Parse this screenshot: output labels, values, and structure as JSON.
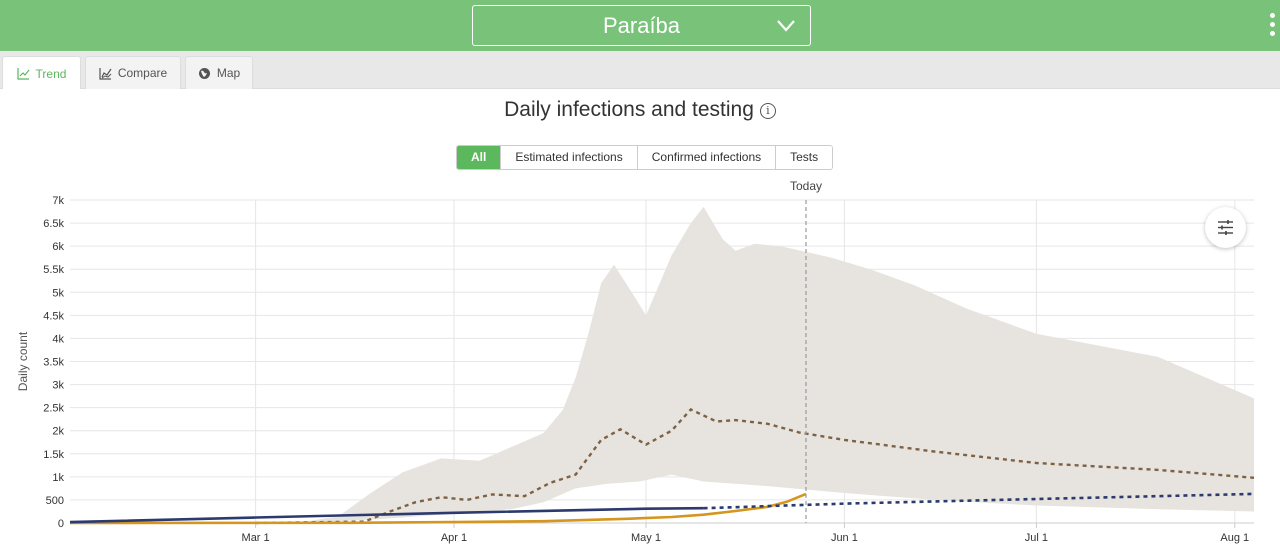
{
  "header": {
    "region": "Paraíba"
  },
  "tabs": [
    {
      "label": "Trend",
      "icon": "line-chart-icon",
      "active": true
    },
    {
      "label": "Compare",
      "icon": "area-chart-icon",
      "active": false
    },
    {
      "label": "Map",
      "icon": "globe-icon",
      "active": false
    }
  ],
  "filters": [
    {
      "label": "All",
      "active": true
    },
    {
      "label": "Estimated infections",
      "active": false
    },
    {
      "label": "Confirmed infections",
      "active": false
    },
    {
      "label": "Tests",
      "active": false
    }
  ],
  "colors": {
    "brand": "#79c27a",
    "accent": "#5cb85c",
    "band": "#e7e4e0",
    "estimated": "#7d6246",
    "confirmed": "#d4961e",
    "tests": "#2c3a6e"
  },
  "chart_data": {
    "type": "line",
    "title": "Daily infections and testing",
    "ylabel": "Daily count",
    "ylim": [
      0,
      7000
    ],
    "x_ticks": [
      "Mar 1",
      "Apr 1",
      "May 1",
      "Jun 1",
      "Jul 1",
      "Aug 1"
    ],
    "y_ticks": [
      "0",
      "500",
      "1k",
      "1.5k",
      "2k",
      "2.5k",
      "3k",
      "3.5k",
      "4k",
      "4.5k",
      "5k",
      "5.5k",
      "6k",
      "6.5k",
      "7k"
    ],
    "x_range": [
      "2020-02-01",
      "2020-08-04"
    ],
    "today": {
      "label": "Today",
      "date": "2020-05-26"
    },
    "grid": true,
    "series": [
      {
        "kind": "band",
        "upper": [
          [
            "2020-03-08",
            10
          ],
          [
            "2020-03-14",
            150
          ],
          [
            "2020-03-19",
            650
          ],
          [
            "2020-03-24",
            1100
          ],
          [
            "2020-03-30",
            1400
          ],
          [
            "2020-04-05",
            1350
          ],
          [
            "2020-04-10",
            1650
          ],
          [
            "2020-04-15",
            1950
          ],
          [
            "2020-04-18",
            2450
          ],
          [
            "2020-04-20",
            3150
          ],
          [
            "2020-04-22",
            4100
          ],
          [
            "2020-04-24",
            5200
          ],
          [
            "2020-04-26",
            5600
          ],
          [
            "2020-04-29",
            4950
          ],
          [
            "2020-05-01",
            4500
          ],
          [
            "2020-05-05",
            5800
          ],
          [
            "2020-05-08",
            6500
          ],
          [
            "2020-05-10",
            6850
          ],
          [
            "2020-05-13",
            6150
          ],
          [
            "2020-05-15",
            5900
          ],
          [
            "2020-05-18",
            6050
          ],
          [
            "2020-05-22",
            6000
          ],
          [
            "2020-05-30",
            5750
          ],
          [
            "2020-06-05",
            5500
          ],
          [
            "2020-06-12",
            5150
          ],
          [
            "2020-06-20",
            4650
          ],
          [
            "2020-07-01",
            4100
          ],
          [
            "2020-07-20",
            3600
          ],
          [
            "2020-08-04",
            2700
          ]
        ],
        "lower": [
          [
            "2020-08-04",
            250
          ],
          [
            "2020-07-20",
            300
          ],
          [
            "2020-07-01",
            380
          ],
          [
            "2020-06-15",
            500
          ],
          [
            "2020-06-01",
            650
          ],
          [
            "2020-05-20",
            800
          ],
          [
            "2020-05-10",
            900
          ],
          [
            "2020-05-05",
            1050
          ],
          [
            "2020-04-30",
            900
          ],
          [
            "2020-04-25",
            850
          ],
          [
            "2020-04-20",
            750
          ],
          [
            "2020-04-15",
            450
          ],
          [
            "2020-04-10",
            300
          ],
          [
            "2020-04-01",
            200
          ],
          [
            "2020-03-20",
            80
          ],
          [
            "2020-03-08",
            0
          ]
        ]
      },
      {
        "name": "Estimated infections",
        "kind": "line",
        "values": [
          [
            "2020-03-01",
            0
          ],
          [
            "2020-03-18",
            30
          ],
          [
            "2020-03-22",
            250
          ],
          [
            "2020-03-26",
            450
          ],
          [
            "2020-03-30",
            560
          ],
          [
            "2020-04-03",
            500
          ],
          [
            "2020-04-07",
            620
          ],
          [
            "2020-04-12",
            580
          ],
          [
            "2020-04-16",
            870
          ],
          [
            "2020-04-20",
            1050
          ],
          [
            "2020-04-24",
            1800
          ],
          [
            "2020-04-27",
            2030
          ],
          [
            "2020-05-01",
            1700
          ],
          [
            "2020-05-05",
            2000
          ],
          [
            "2020-05-08",
            2460
          ],
          [
            "2020-05-12",
            2200
          ],
          [
            "2020-05-15",
            2230
          ],
          [
            "2020-05-20",
            2150
          ],
          [
            "2020-05-25",
            1960
          ],
          [
            "2020-06-01",
            1800
          ],
          [
            "2020-06-15",
            1550
          ],
          [
            "2020-07-01",
            1300
          ],
          [
            "2020-07-20",
            1150
          ],
          [
            "2020-08-04",
            980
          ]
        ]
      },
      {
        "name": "Confirmed infections",
        "kind": "line",
        "values": [
          [
            "2020-02-01",
            0
          ],
          [
            "2020-03-16",
            5
          ],
          [
            "2020-04-01",
            20
          ],
          [
            "2020-04-15",
            40
          ],
          [
            "2020-04-28",
            90
          ],
          [
            "2020-05-05",
            130
          ],
          [
            "2020-05-10",
            180
          ],
          [
            "2020-05-15",
            260
          ],
          [
            "2020-05-20",
            350
          ],
          [
            "2020-05-23",
            460
          ],
          [
            "2020-05-26",
            630
          ]
        ]
      },
      {
        "name": "Tests",
        "kind": "line",
        "values": [
          [
            "2020-02-01",
            20
          ],
          [
            "2020-03-01",
            120
          ],
          [
            "2020-04-01",
            220
          ],
          [
            "2020-05-01",
            310
          ],
          [
            "2020-05-10",
            320
          ],
          [
            "2020-06-01",
            420
          ],
          [
            "2020-07-01",
            520
          ],
          [
            "2020-08-04",
            630
          ]
        ],
        "projected_from": "2020-05-10"
      }
    ]
  }
}
